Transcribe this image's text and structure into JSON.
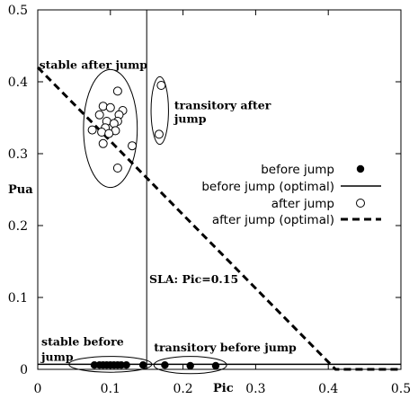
{
  "chart_data": {
    "type": "scatter",
    "xlabel": "Pic",
    "ylabel": "Pua",
    "xlim": [
      0,
      0.5
    ],
    "ylim": [
      0,
      0.5
    ],
    "x_ticks": [
      "0",
      "0.1",
      "0.2",
      "0.3",
      "0.4",
      "0.5"
    ],
    "y_ticks": [
      "0",
      "0.1",
      "0.2",
      "0.3",
      "0.4",
      "0.5"
    ],
    "grid": false,
    "legend_position": "center-right",
    "series": [
      {
        "name": "before jump",
        "marker": "filled-circle",
        "points": [
          [
            0.078,
            0.006
          ],
          [
            0.085,
            0.006
          ],
          [
            0.09,
            0.006
          ],
          [
            0.095,
            0.006
          ],
          [
            0.1,
            0.006
          ],
          [
            0.105,
            0.006
          ],
          [
            0.11,
            0.006
          ],
          [
            0.115,
            0.006
          ],
          [
            0.122,
            0.006
          ],
          [
            0.145,
            0.006
          ],
          [
            0.175,
            0.006
          ],
          [
            0.21,
            0.005
          ],
          [
            0.245,
            0.005
          ]
        ]
      },
      {
        "name": "before jump (optimal)",
        "style": "solid-line",
        "points": [
          [
            0,
            0.007
          ],
          [
            0.5,
            0.007
          ]
        ]
      },
      {
        "name": "after jump",
        "marker": "open-circle",
        "points": [
          [
            0.09,
            0.366
          ],
          [
            0.1,
            0.364
          ],
          [
            0.11,
            0.387
          ],
          [
            0.117,
            0.36
          ],
          [
            0.112,
            0.354
          ],
          [
            0.085,
            0.354
          ],
          [
            0.11,
            0.345
          ],
          [
            0.095,
            0.345
          ],
          [
            0.105,
            0.342
          ],
          [
            0.075,
            0.333
          ],
          [
            0.093,
            0.336
          ],
          [
            0.107,
            0.332
          ],
          [
            0.088,
            0.33
          ],
          [
            0.098,
            0.328
          ],
          [
            0.09,
            0.314
          ],
          [
            0.13,
            0.311
          ],
          [
            0.11,
            0.28
          ],
          [
            0.17,
            0.395
          ],
          [
            0.167,
            0.327
          ]
        ]
      },
      {
        "name": "after jump (optimal)",
        "style": "dashed-line",
        "points": [
          [
            0,
            0.42
          ],
          [
            0.41,
            0.0
          ],
          [
            0.5,
            0.0
          ]
        ]
      }
    ],
    "vertical_line": {
      "x": 0.15,
      "label": "SLA: Pic=0.15"
    },
    "annotations": [
      {
        "text": "stable after jump",
        "x": 0.002,
        "y": 0.418
      },
      {
        "text": "transitory after",
        "x": 0.188,
        "y": 0.362
      },
      {
        "text": "jump",
        "x": 0.188,
        "y": 0.343
      },
      {
        "text": "stable before",
        "x": 0.005,
        "y": 0.033
      },
      {
        "text": "jump",
        "x": 0.005,
        "y": 0.012
      },
      {
        "text": "transitory before jump",
        "x": 0.16,
        "y": 0.025
      }
    ],
    "regions": [
      {
        "cx": 0.1,
        "cy": 0.335,
        "rx": 0.037,
        "ry": 0.082
      },
      {
        "cx": 0.168,
        "cy": 0.36,
        "rx": 0.012,
        "ry": 0.047
      },
      {
        "cx": 0.1,
        "cy": 0.007,
        "rx": 0.057,
        "ry": 0.011
      },
      {
        "cx": 0.21,
        "cy": 0.006,
        "rx": 0.05,
        "ry": 0.012
      }
    ]
  }
}
